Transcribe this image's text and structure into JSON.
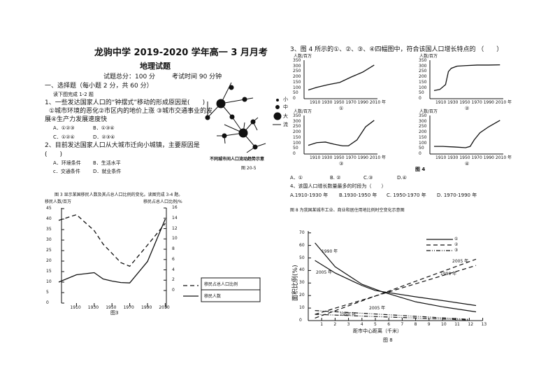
{
  "header": {
    "title": "龙驹中学 2019-2020 学年高一 3 月月考",
    "subject": "地理试题",
    "score": "试题总分：100 分",
    "time": "考试时间 90 分钟"
  },
  "section": "一、选择题（每小题 2 分，共 60 分）",
  "intro12": "读下图完成 1-2 题",
  "q1": {
    "stem": "1、一些发达国家人口的“钟摆式”移动的形成原因是(　　)",
    "line2": "①城市环境的恶化②市区内的地价上涨 ③城市交通事业的发",
    "line3": "展④生产力发展速度快",
    "a": "A．①②③",
    "b": "B．①③④",
    "c": "C．①②④",
    "d": "D．②③④"
  },
  "q2": {
    "stem": "2、目前发达国家人口从大城市迁向小城镇，主要原因是",
    "paren": "(　　)",
    "a": "A．环境条件",
    "b": "B．生活水平",
    "c": "c．交通条件",
    "d": "D．就业条件"
  },
  "fig205": {
    "legend": [
      "小",
      "中",
      "大",
      "流"
    ],
    "caption": "不同城市间人口流动趋势示意",
    "label": "图 20-5"
  },
  "fig3": {
    "intro": "图 3 显示某国移民人数及其占总人口比例的变化。读图完成 3-4 题。",
    "ylabel_left": "移民人数/百万",
    "ylabel_right": "移民占总人口比例/%",
    "yticks_left": [
      "45",
      "40",
      "35",
      "30",
      "25",
      "20",
      "15",
      "10",
      "5",
      "0"
    ],
    "yticks_right": [
      "16",
      "14",
      "12",
      "10",
      "8",
      "6",
      "4",
      "2",
      "0"
    ],
    "xticks": [
      "1910",
      "1930",
      "1950",
      "1970",
      "1990",
      "2010"
    ],
    "series": [
      {
        "name": "移民占总人口比例",
        "style": "dashed",
        "axis": "right",
        "x": [
          1890,
          1910,
          1930,
          1940,
          1960,
          1970,
          1990,
          2010
        ],
        "y": [
          13.6,
          14.7,
          11.6,
          9,
          5.4,
          4.7,
          8.8,
          13
        ]
      },
      {
        "name": "移民人数",
        "style": "solid",
        "axis": "left",
        "x": [
          1890,
          1910,
          1920,
          1930,
          1940,
          1950,
          1960,
          1970,
          1990,
          2010
        ],
        "y": [
          10,
          13.5,
          14,
          14.5,
          11.5,
          10.5,
          9.8,
          9.6,
          19.8,
          40
        ]
      }
    ],
    "label": "图3"
  },
  "q3": {
    "stem": "3、图 4 所示的①、②、③、④四幅图中，符合该国人口增长特点的 （　　）",
    "a": "A．①",
    "b": "B. ②",
    "c": "C.③",
    "d": "D.④"
  },
  "fig4": {
    "ylabel": "人数/百万",
    "yticks": [
      "350",
      "300",
      "250",
      "200",
      "150",
      "100",
      "50",
      "0"
    ],
    "xticks": "1910 1930 1950 1970 1990 2010 年",
    "label": "图 4",
    "panels": [
      {
        "label": "①",
        "x": [
          1895,
          1910,
          1930,
          1950,
          1970,
          1990,
          2010
        ],
        "y": [
          80,
          105,
          130,
          150,
          200,
          245,
          310
        ]
      },
      {
        "label": "②",
        "x": [
          1895,
          1905,
          1915,
          1920,
          1925,
          1935,
          1950,
          1970,
          1990,
          2010
        ],
        "y": [
          75,
          85,
          130,
          250,
          280,
          300,
          305,
          310,
          310,
          312
        ]
      },
      {
        "label": "③",
        "x": [
          1895,
          1910,
          1925,
          1940,
          1955,
          1965,
          1980,
          1995,
          2010
        ],
        "y": [
          80,
          105,
          110,
          90,
          75,
          75,
          130,
          250,
          310
        ]
      },
      {
        "label": "④",
        "x": [
          1895,
          1910,
          1930,
          1950,
          1958,
          1965,
          1975,
          1990,
          2010
        ],
        "y": [
          70,
          70,
          65,
          58,
          70,
          130,
          195,
          250,
          310
        ]
      }
    ]
  },
  "q4": {
    "stem": "4、该国人口增长数量最多的时段为（　　）",
    "a": "A.1910-1930 年",
    "b": "B.1930-1950 年",
    "c": "C. 1950-1970 年",
    "d": "D. 1970-1990 年"
  },
  "fig8": {
    "intro": "图 8 为我国某城市工业、商业和居住用地比例时空变化示意图",
    "ylabel": "面积比例(%)",
    "xlabel": "距市中心距离（千米）",
    "label": "图 8",
    "yticks": [
      "70",
      "60",
      "50",
      "40",
      "30",
      "20",
      "10",
      "0"
    ],
    "xticks": [
      "1",
      "2",
      "3",
      "4",
      "5",
      "6",
      "7",
      "8",
      "9",
      "10",
      "11",
      "12",
      "13"
    ],
    "legend": [
      "①",
      "②",
      "③"
    ],
    "annotations": [
      "1990 年",
      "2005 年",
      "2005 年",
      "1990 年",
      "2005 年",
      "1990 年"
    ],
    "series": [
      {
        "legend": "①",
        "year": "1990",
        "style": "solid",
        "x": [
          0.5,
          2,
          4,
          5.5,
          8,
          10,
          12.5
        ],
        "y": [
          62,
          43,
          29,
          23,
          15,
          11,
          7
        ]
      },
      {
        "legend": "①",
        "year": "2005",
        "style": "solid",
        "x": [
          0.5,
          2,
          4,
          5,
          8,
          10,
          12.5
        ],
        "y": [
          48,
          38,
          28,
          24,
          19,
          16,
          12
        ]
      },
      {
        "legend": "②",
        "year": "2005",
        "style": "dashed",
        "x": [
          0.5,
          12.5
        ],
        "y": [
          2,
          49
        ]
      },
      {
        "legend": "②",
        "year": "1990",
        "style": "dashed",
        "x": [
          0.5,
          12.5
        ],
        "y": [
          5,
          44
        ]
      },
      {
        "legend": "③",
        "year": "2005",
        "style": "dashdot",
        "x": [
          0.5,
          12
        ],
        "y": [
          8,
          1
        ]
      },
      {
        "legend": "③",
        "year": "1990",
        "style": "dashdot",
        "x": [
          0.5,
          12
        ],
        "y": [
          5,
          0.5
        ]
      }
    ]
  }
}
